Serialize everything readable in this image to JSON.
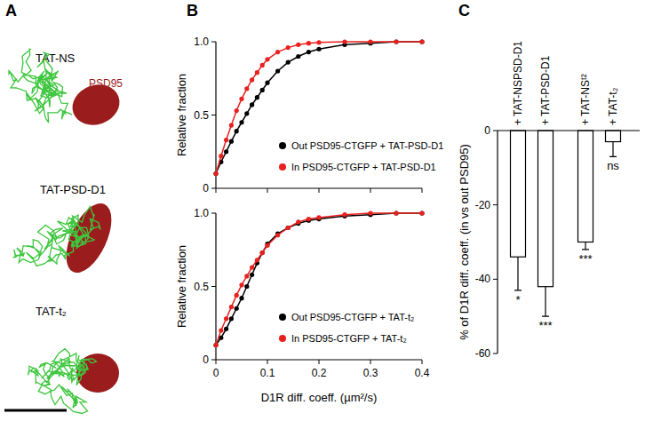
{
  "chart_data": [
    {
      "type": "trajectory",
      "label": "A",
      "conditions": [
        "TAT-NS",
        "TAT-PSD-D1",
        "TAT-t₂"
      ],
      "region_label": "PSD95"
    },
    {
      "type": "line",
      "label": "B",
      "ylabel": "Relative fraction",
      "x": [
        0,
        0.01,
        0.02,
        0.03,
        0.04,
        0.05,
        0.06,
        0.07,
        0.08,
        0.09,
        0.1,
        0.12,
        0.14,
        0.16,
        0.18,
        0.2,
        0.25,
        0.3,
        0.35,
        0.4
      ],
      "series": [
        {
          "name": "Out PSD95-CTGFP + TAT-PSD-D1",
          "color": "#000000",
          "marker": "circle",
          "values": [
            0.1,
            0.18,
            0.25,
            0.32,
            0.39,
            0.45,
            0.51,
            0.57,
            0.62,
            0.67,
            0.72,
            0.8,
            0.86,
            0.9,
            0.93,
            0.95,
            0.98,
            0.99,
            1,
            1
          ]
        },
        {
          "name": "In PSD95-CTGFP + TAT-PSD-D1",
          "color": "#e8201e",
          "marker": "circle",
          "values": [
            0.1,
            0.22,
            0.33,
            0.43,
            0.53,
            0.61,
            0.68,
            0.74,
            0.79,
            0.84,
            0.88,
            0.93,
            0.96,
            0.98,
            0.99,
            0.995,
            1,
            1,
            1,
            1
          ]
        }
      ],
      "xlim": [
        0,
        0.4
      ],
      "xticks": [
        0,
        0.1,
        0.2,
        0.3,
        0.4
      ],
      "ylim": [
        0,
        1
      ],
      "yticks": [
        0,
        0.5,
        {
          "value": 1,
          "label": "1.0"
        }
      ],
      "tick_labels": "y",
      "legend": "lower right"
    },
    {
      "type": "line",
      "ylabel": "Relative fraction",
      "xlabel": "D1R diff. coeff. (µm²/s)",
      "x": [
        0,
        0.01,
        0.02,
        0.03,
        0.04,
        0.05,
        0.06,
        0.07,
        0.08,
        0.09,
        0.1,
        0.12,
        0.14,
        0.16,
        0.18,
        0.2,
        0.25,
        0.3,
        0.35,
        0.4
      ],
      "series": [
        {
          "name": "Out PSD95-CTGFP + TAT-t₂",
          "color": "#000000",
          "marker": "circle",
          "values": [
            0.1,
            0.15,
            0.21,
            0.28,
            0.35,
            0.42,
            0.5,
            0.58,
            0.66,
            0.73,
            0.79,
            0.86,
            0.9,
            0.93,
            0.95,
            0.96,
            0.98,
            0.99,
            1,
            1
          ]
        },
        {
          "name": "In PSD95-CTGFP + TAT-t₂",
          "color": "#e8201e",
          "marker": "circle",
          "values": [
            0.1,
            0.2,
            0.28,
            0.36,
            0.44,
            0.51,
            0.57,
            0.63,
            0.68,
            0.73,
            0.78,
            0.85,
            0.9,
            0.94,
            0.96,
            0.97,
            0.99,
            1,
            1,
            1
          ]
        }
      ],
      "xlim": [
        0,
        0.4
      ],
      "xticks": [
        0,
        0.1,
        0.2,
        0.3,
        0.4
      ],
      "ylim": [
        0,
        1
      ],
      "yticks": [
        0,
        0.5,
        {
          "value": 1,
          "label": "1.0"
        }
      ],
      "legend": "lower right"
    },
    {
      "type": "bar",
      "label": "C",
      "ylabel": "% of D1R diff. coeff. (in vs out PSD95)",
      "categories": [
        "+ TAT-NSPSD-D1",
        "+ TAT-PSD-D1",
        "+ TAT-NSᵗ²",
        "+ TAT-t₂"
      ],
      "values": [
        -34,
        -42,
        -30,
        -3
      ],
      "errors": [
        9,
        8,
        2,
        4
      ],
      "annotations": [
        "*",
        "***",
        "***",
        "ns"
      ],
      "color": "#ffffff",
      "ylim": [
        -60,
        0
      ],
      "yticks": [
        -60,
        -40,
        -20,
        0
      ]
    }
  ]
}
